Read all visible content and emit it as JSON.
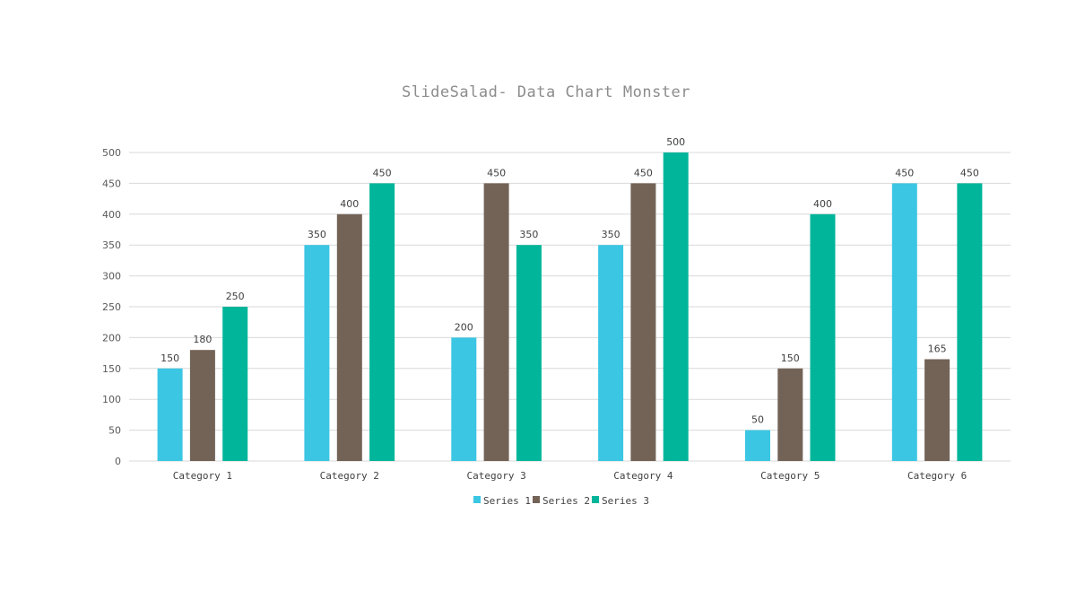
{
  "colors": {
    "series_1": "#3bc6e3",
    "series_2": "#736357",
    "series_3": "#00b59a",
    "grid": "#d9d9d9",
    "title": "#8c8c8c"
  },
  "chart_data": {
    "type": "bar",
    "title": "SlideSalad- Data Chart Monster",
    "xlabel": "",
    "ylabel": "",
    "categories": [
      "Category 1",
      "Category 2",
      "Category 3",
      "Category 4",
      "Category 5",
      "Category 6"
    ],
    "series": [
      {
        "name": "Series 1",
        "values": [
          150,
          350,
          200,
          350,
          50,
          450
        ]
      },
      {
        "name": "Series 2",
        "values": [
          180,
          400,
          450,
          450,
          150,
          165
        ]
      },
      {
        "name": "Series 3",
        "values": [
          250,
          450,
          350,
          500,
          400,
          450
        ]
      }
    ],
    "ylim": [
      0,
      500
    ],
    "yticks": [
      0,
      50,
      100,
      150,
      200,
      250,
      300,
      350,
      400,
      450,
      500
    ],
    "grid": true,
    "data_labels": true,
    "legend_position": "bottom"
  }
}
